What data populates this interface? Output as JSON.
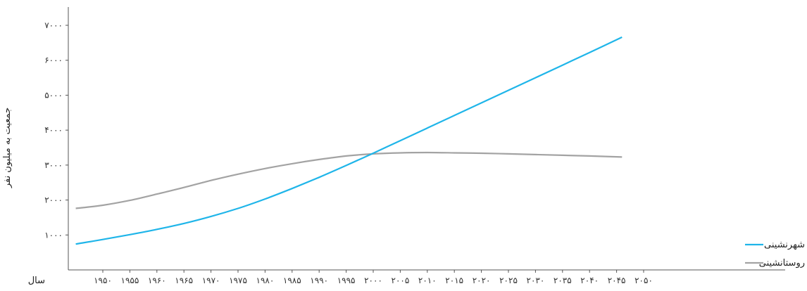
{
  "chart_data": {
    "type": "line",
    "title": "",
    "ylabel": "جمعیت به میلیون نفر",
    "xlabel": "سال",
    "ylim": [
      0,
      7000
    ],
    "xlim": [
      1945,
      2053
    ],
    "yticks": [
      1000,
      2000,
      3000,
      4000,
      5000,
      6000,
      7000
    ],
    "ytick_labels": [
      "۱۰۰۰",
      "۲۰۰۰",
      "۳۰۰۰",
      "۴۰۰۰",
      "۵۰۰۰",
      "۶۰۰۰",
      "۷۰۰۰"
    ],
    "xticks": [
      1950,
      1955,
      1960,
      1965,
      1970,
      1975,
      1980,
      1985,
      1990,
      1995,
      2000,
      2005,
      2010,
      2015,
      2020,
      2025,
      2030,
      2035,
      2040,
      2045,
      2050
    ],
    "xtick_labels": [
      "۱۹۵۰",
      "۱۹۵۵",
      "۱۹۶۰",
      "۱۹۶۵",
      "۱۹۷۰",
      "۱۹۷۵",
      "۱۹۸۰",
      "۱۹۸۵",
      "۱۹۹۰",
      "۱۹۹۵",
      "۲۰۰۰",
      "۲۰۰۵",
      "۲۰۱۰",
      "۲۰۱۵",
      "۲۰۲۰",
      "۲۰۲۵",
      "۲۰۳۰",
      "۲۰۳۵",
      "۲۰۴۰",
      "۲۰۴۵",
      "۲۰۵۰"
    ],
    "grid": false,
    "legend_position": "bottom-right",
    "series": [
      {
        "name": "شهرنشینی",
        "color": "#1fb5e9",
        "x": [
          1945,
          1950,
          1955,
          1960,
          1965,
          1970,
          1975,
          1980,
          1985,
          1990,
          1995,
          2000,
          2005,
          2010,
          2015,
          2020,
          2025,
          2030,
          2035,
          2040,
          2046
        ],
        "y": [
          740,
          870,
          1010,
          1160,
          1330,
          1530,
          1760,
          2030,
          2330,
          2650,
          2990,
          3340,
          3700,
          4060,
          4420,
          4780,
          5140,
          5500,
          5860,
          6220,
          6660
        ]
      },
      {
        "name": "روستانشینی",
        "color": "#a3a3a3",
        "x": [
          1945,
          1950,
          1955,
          1960,
          1965,
          1970,
          1975,
          1980,
          1985,
          1990,
          1995,
          2000,
          2005,
          2010,
          2015,
          2020,
          2025,
          2030,
          2035,
          2040,
          2046
        ],
        "y": [
          1760,
          1850,
          1990,
          2170,
          2360,
          2560,
          2740,
          2900,
          3040,
          3160,
          3260,
          3320,
          3350,
          3360,
          3350,
          3340,
          3320,
          3300,
          3280,
          3260,
          3230
        ]
      }
    ]
  }
}
